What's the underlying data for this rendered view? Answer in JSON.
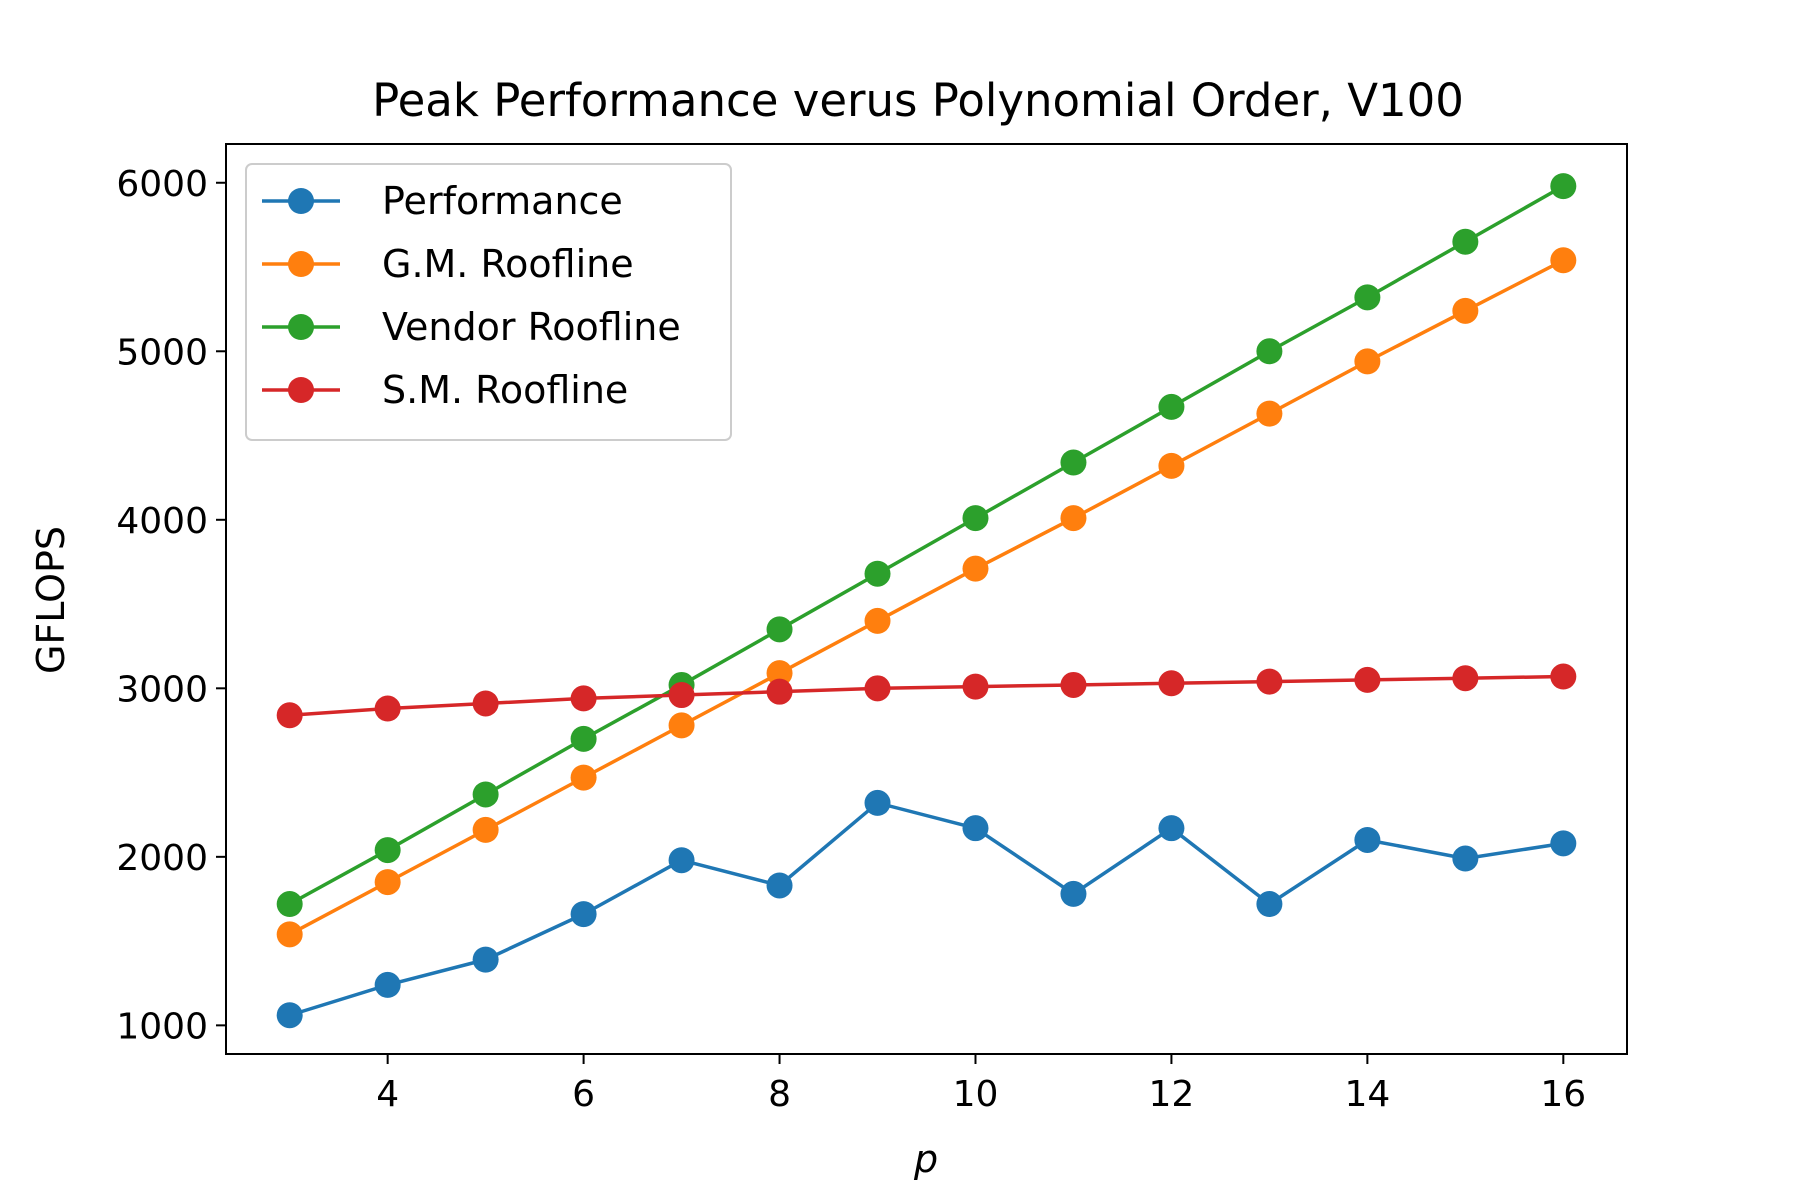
{
  "chart_data": {
    "type": "line",
    "title": "Peak Performance verus Polynomial Order, V100",
    "xlabel": "p",
    "ylabel": "GFLOPS",
    "xlim": [
      2.35,
      16.65
    ],
    "ylim": [
      830,
      6230
    ],
    "xticks": [
      4,
      6,
      8,
      10,
      12,
      14,
      16
    ],
    "yticks": [
      1000,
      2000,
      3000,
      4000,
      5000,
      6000
    ],
    "x": [
      3,
      4,
      5,
      6,
      7,
      8,
      9,
      10,
      11,
      12,
      13,
      14,
      15,
      16
    ],
    "legend_position": "upper-left",
    "grid": false,
    "series": [
      {
        "name": "Performance",
        "color": "#1f77b4",
        "values": [
          1060,
          1240,
          1390,
          1660,
          1980,
          1830,
          2320,
          2170,
          1780,
          2170,
          1720,
          2100,
          1990,
          2080
        ]
      },
      {
        "name": "G.M. Roofline",
        "color": "#ff7f0e",
        "values": [
          1540,
          1850,
          2160,
          2470,
          2780,
          3090,
          3400,
          3710,
          4010,
          4320,
          4630,
          4940,
          5240,
          5540
        ]
      },
      {
        "name": "Vendor Roofline",
        "color": "#2ca02c",
        "values": [
          1720,
          2040,
          2370,
          2700,
          3020,
          3350,
          3680,
          4010,
          4340,
          4670,
          5000,
          5320,
          5650,
          5980
        ]
      },
      {
        "name": "S.M. Roofline",
        "color": "#d62728",
        "values": [
          2840,
          2880,
          2910,
          2940,
          2960,
          2980,
          3000,
          3010,
          3020,
          3030,
          3040,
          3050,
          3060,
          3070
        ]
      }
    ]
  }
}
